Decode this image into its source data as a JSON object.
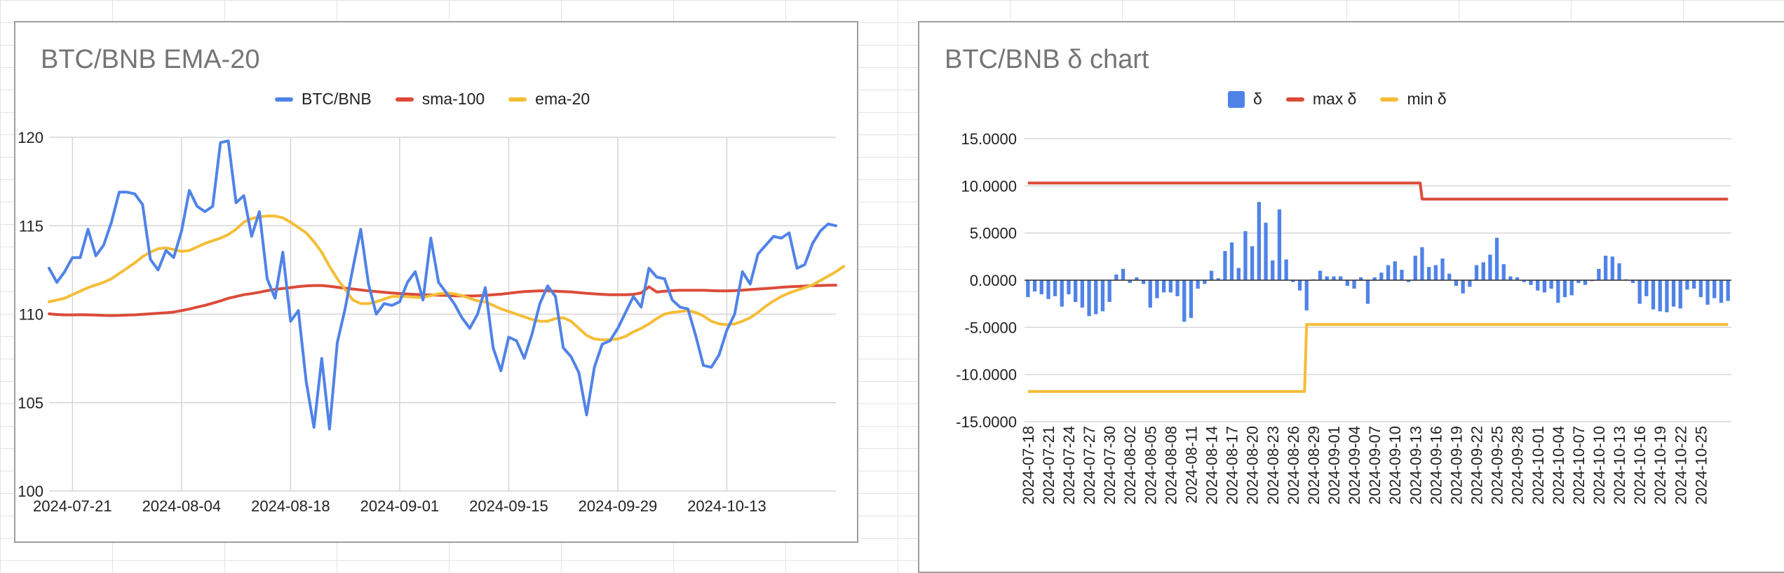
{
  "colors": {
    "blue": "#5083e8",
    "red": "#dc4b3a",
    "yellow": "#f5bd37",
    "grid": "#d6d6d6",
    "axis": "#222222"
  },
  "chart_data": [
    {
      "type": "line",
      "title": "BTC/BNB EMA-20",
      "x_start": "2024-07-18",
      "x_tick_labels": [
        "2024-07-21",
        "2024-08-04",
        "2024-08-18",
        "2024-09-01",
        "2024-09-15",
        "2024-09-29",
        "2024-10-13"
      ],
      "y_tick_labels": [
        "100",
        "105",
        "110",
        "115",
        "120"
      ],
      "ylim": [
        100,
        120
      ],
      "legend_position": "top",
      "grid": true,
      "series": [
        {
          "name": "BTC/BNB",
          "color": "#5083e8",
          "values": [
            112.6,
            111.8,
            112.4,
            113.2,
            113.2,
            114.8,
            113.3,
            113.9,
            115.2,
            116.9,
            116.9,
            116.8,
            116.2,
            113.1,
            112.5,
            113.6,
            113.2,
            114.7,
            117.0,
            116.1,
            115.8,
            116.1,
            119.7,
            119.8,
            116.3,
            116.7,
            114.4,
            115.8,
            112.0,
            110.9,
            113.5,
            109.6,
            110.2,
            106.2,
            103.6,
            107.5,
            103.5,
            108.4,
            110.3,
            112.6,
            114.8,
            111.7,
            110.0,
            110.6,
            110.5,
            110.7,
            111.8,
            112.4,
            110.8,
            114.3,
            111.8,
            111.2,
            110.6,
            109.8,
            109.2,
            110.0,
            111.5,
            108.1,
            106.8,
            108.7,
            108.5,
            107.5,
            108.9,
            110.6,
            111.6,
            111.0,
            108.1,
            107.6,
            106.7,
            104.3,
            107.0,
            108.3,
            108.5,
            109.2,
            110.1,
            111.0,
            110.4,
            112.6,
            112.1,
            112.0,
            110.8,
            110.4,
            110.3,
            108.8,
            107.1,
            107.0,
            107.7,
            109.1,
            110.0,
            112.4,
            111.7,
            113.4,
            113.9,
            114.4,
            114.3,
            114.6,
            112.6,
            112.8,
            114.0,
            114.7,
            115.1,
            115.0
          ]
        },
        {
          "name": "sma-100",
          "color": "#dc4b3a",
          "values": [
            110.02,
            109.98,
            109.96,
            109.96,
            109.97,
            109.96,
            109.95,
            109.93,
            109.92,
            109.93,
            109.95,
            109.96,
            109.99,
            110.02,
            110.05,
            110.08,
            110.12,
            110.2,
            110.29,
            110.4,
            110.5,
            110.62,
            110.75,
            110.9,
            111.0,
            111.1,
            111.16,
            111.24,
            111.33,
            111.4,
            111.45,
            111.5,
            111.56,
            111.6,
            111.62,
            111.62,
            111.58,
            111.52,
            111.47,
            111.42,
            111.37,
            111.32,
            111.28,
            111.24,
            111.2,
            111.17,
            111.14,
            111.12,
            111.1,
            111.09,
            111.07,
            111.06,
            111.04,
            111.03,
            111.03,
            111.04,
            111.06,
            111.1,
            111.13,
            111.18,
            111.23,
            111.28,
            111.3,
            111.32,
            111.32,
            111.3,
            111.28,
            111.26,
            111.22,
            111.18,
            111.15,
            111.12,
            111.1,
            111.1,
            111.1,
            111.12,
            111.2,
            111.55,
            111.25,
            111.3,
            111.33,
            111.35,
            111.35,
            111.35,
            111.35,
            111.33,
            111.32,
            111.32,
            111.33,
            111.36,
            111.39,
            111.42,
            111.45,
            111.48,
            111.52,
            111.55,
            111.57,
            111.59,
            111.61,
            111.62,
            111.63,
            111.64
          ]
        },
        {
          "name": "ema-20",
          "color": "#f5bd37",
          "values": [
            110.7,
            110.8,
            110.9,
            111.1,
            111.3,
            111.5,
            111.65,
            111.8,
            112.0,
            112.3,
            112.6,
            112.9,
            113.25,
            113.5,
            113.7,
            113.75,
            113.65,
            113.55,
            113.6,
            113.8,
            114.0,
            114.15,
            114.3,
            114.5,
            114.8,
            115.2,
            115.4,
            115.5,
            115.55,
            115.55,
            115.45,
            115.2,
            114.9,
            114.6,
            114.1,
            113.5,
            112.7,
            112.0,
            111.4,
            110.8,
            110.6,
            110.6,
            110.7,
            110.85,
            111.0,
            111.0,
            111.0,
            110.95,
            110.95,
            111.05,
            111.15,
            111.2,
            111.15,
            111.05,
            110.9,
            110.75,
            110.7,
            110.5,
            110.3,
            110.15,
            110.0,
            109.85,
            109.7,
            109.6,
            109.6,
            109.75,
            109.8,
            109.6,
            109.2,
            108.8,
            108.6,
            108.55,
            108.55,
            108.6,
            108.75,
            109.0,
            109.2,
            109.45,
            109.75,
            110.0,
            110.1,
            110.15,
            110.2,
            110.1,
            109.9,
            109.6,
            109.45,
            109.4,
            109.45,
            109.6,
            109.8,
            110.1,
            110.45,
            110.75,
            111.0,
            111.2,
            111.35,
            111.5,
            111.65,
            111.9,
            112.15,
            112.4,
            112.7
          ]
        }
      ]
    },
    {
      "type": "bar",
      "title": "BTC/BNB δ chart",
      "ylim": [
        -15,
        15
      ],
      "y_tick_labels": [
        "15.0000",
        "10.0000",
        "5.0000",
        "0.0000",
        "-5.0000",
        "-10.0000",
        "-15.0000"
      ],
      "x_tick_labels": [
        "2024-07-18",
        "2024-07-21",
        "2024-07-24",
        "2024-07-27",
        "2024-07-30",
        "2024-08-02",
        "2024-08-05",
        "2024-08-08",
        "2024-08-11",
        "2024-08-14",
        "2024-08-17",
        "2024-08-20",
        "2024-08-23",
        "2024-08-26",
        "2024-08-29",
        "2024-09-01",
        "2024-09-04",
        "2024-09-07",
        "2024-09-10",
        "2024-09-13",
        "2024-09-16",
        "2024-09-19",
        "2024-09-22",
        "2024-09-25",
        "2024-09-28",
        "2024-10-01",
        "2024-10-04",
        "2024-10-07",
        "2024-10-10",
        "2024-10-13",
        "2024-10-16",
        "2024-10-19",
        "2024-10-22",
        "2024-10-25"
      ],
      "legend_position": "top",
      "grid": true,
      "series": [
        {
          "name": "δ",
          "color": "#5083e8",
          "values": [
            -1.8,
            -1.2,
            -1.5,
            -2.0,
            -1.7,
            -2.8,
            -1.5,
            -2.3,
            -2.9,
            -3.8,
            -3.6,
            -3.3,
            -2.3,
            0.6,
            1.2,
            -0.3,
            0.3,
            -0.4,
            -2.9,
            -1.9,
            -1.3,
            -1.3,
            -1.7,
            -4.4,
            -4.0,
            -0.9,
            -0.4,
            1.0,
            0.2,
            3.1,
            4.0,
            1.3,
            5.2,
            3.6,
            8.3,
            6.1,
            2.1,
            7.5,
            2.2,
            -0.2,
            -1.1,
            -3.2,
            0.1,
            1.0,
            0.4,
            0.4,
            0.4,
            -0.6,
            -0.9,
            0.3,
            -2.5,
            0.3,
            0.8,
            1.6,
            2.0,
            1.1,
            -0.2,
            2.6,
            3.5,
            1.4,
            1.6,
            2.3,
            0.7,
            -0.6,
            -1.4,
            -0.7,
            1.6,
            1.9,
            2.7,
            4.5,
            1.7,
            0.4,
            0.3,
            -0.2,
            -0.5,
            -1.1,
            -1.3,
            -0.9,
            -2.4,
            -1.8,
            -1.6,
            -0.3,
            -0.5,
            -0.1,
            1.2,
            2.6,
            2.5,
            1.8,
            0.1,
            -0.3,
            -2.5,
            -1.7,
            -3.1,
            -3.3,
            -3.4,
            -2.8,
            -3.0,
            -1.0,
            -0.9,
            -1.8,
            -2.6,
            -1.9,
            -2.4,
            -2.2
          ]
        },
        {
          "name": "max δ",
          "color": "#dc4b3a",
          "steps": [
            {
              "from_index": 0,
              "value": 10.3
            },
            {
              "from_index": 58,
              "value": 8.6
            }
          ]
        },
        {
          "name": "min δ",
          "color": "#f5bd37",
          "steps": [
            {
              "from_index": 0,
              "value": -11.8
            },
            {
              "from_index": 41,
              "value": -4.7
            }
          ]
        }
      ]
    }
  ]
}
